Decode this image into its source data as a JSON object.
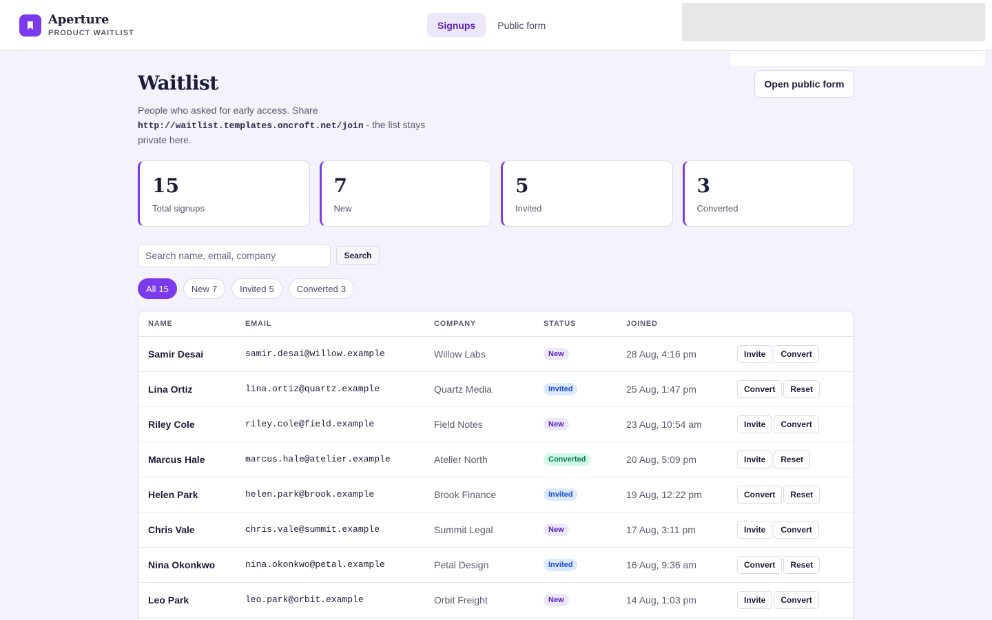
{
  "brand": {
    "name": "Aperture",
    "subtitle": "PRODUCT WAITLIST",
    "icon": "bookmark-icon",
    "accent": "#7c3aed"
  },
  "nav": {
    "tabs": [
      {
        "label": "Signups",
        "active": true
      },
      {
        "label": "Public form",
        "active": false
      }
    ]
  },
  "page": {
    "title": "Waitlist",
    "description_before": "People who asked for early access. Share",
    "url": "http://waitlist.templates.oncroft.net/join",
    "description_after": "- the list stays private here.",
    "open_form_label": "Open public form"
  },
  "stats": [
    {
      "value": "15",
      "label": "Total signups"
    },
    {
      "value": "7",
      "label": "New"
    },
    {
      "value": "5",
      "label": "Invited"
    },
    {
      "value": "3",
      "label": "Converted"
    }
  ],
  "search": {
    "placeholder": "Search name, email, company",
    "value": "",
    "button_label": "Search"
  },
  "filters": [
    {
      "label": "All",
      "count": "15",
      "active": true
    },
    {
      "label": "New",
      "count": "7",
      "active": false
    },
    {
      "label": "Invited",
      "count": "5",
      "active": false
    },
    {
      "label": "Converted",
      "count": "3",
      "active": false
    }
  ],
  "table": {
    "columns": [
      "NAME",
      "EMAIL",
      "COMPANY",
      "STATUS",
      "JOINED"
    ],
    "rows": [
      {
        "name": "Samir Desai",
        "email": "samir.desai@willow.example",
        "company": "Willow Labs",
        "status": "New",
        "joined": "28 Aug, 4:16 pm",
        "actions": [
          "Invite",
          "Convert"
        ]
      },
      {
        "name": "Lina Ortiz",
        "email": "lina.ortiz@quartz.example",
        "company": "Quartz Media",
        "status": "Invited",
        "joined": "25 Aug, 1:47 pm",
        "actions": [
          "Convert",
          "Reset"
        ]
      },
      {
        "name": "Riley Cole",
        "email": "riley.cole@field.example",
        "company": "Field Notes",
        "status": "New",
        "joined": "23 Aug, 10:54 am",
        "actions": [
          "Invite",
          "Convert"
        ]
      },
      {
        "name": "Marcus Hale",
        "email": "marcus.hale@atelier.example",
        "company": "Atelier North",
        "status": "Converted",
        "joined": "20 Aug, 5:09 pm",
        "actions": [
          "Invite",
          "Reset"
        ]
      },
      {
        "name": "Helen Park",
        "email": "helen.park@brook.example",
        "company": "Brook Finance",
        "status": "Invited",
        "joined": "19 Aug, 12:22 pm",
        "actions": [
          "Convert",
          "Reset"
        ]
      },
      {
        "name": "Chris Vale",
        "email": "chris.vale@summit.example",
        "company": "Summit Legal",
        "status": "New",
        "joined": "17 Aug, 3:11 pm",
        "actions": [
          "Invite",
          "Convert"
        ]
      },
      {
        "name": "Nina Okonkwo",
        "email": "nina.okonkwo@petal.example",
        "company": "Petal Design",
        "status": "Invited",
        "joined": "16 Aug, 9:36 am",
        "actions": [
          "Convert",
          "Reset"
        ]
      },
      {
        "name": "Leo Park",
        "email": "leo.park@orbit.example",
        "company": "Orbit Freight",
        "status": "New",
        "joined": "14 Aug, 1:03 pm",
        "actions": [
          "Invite",
          "Convert"
        ]
      }
    ]
  }
}
